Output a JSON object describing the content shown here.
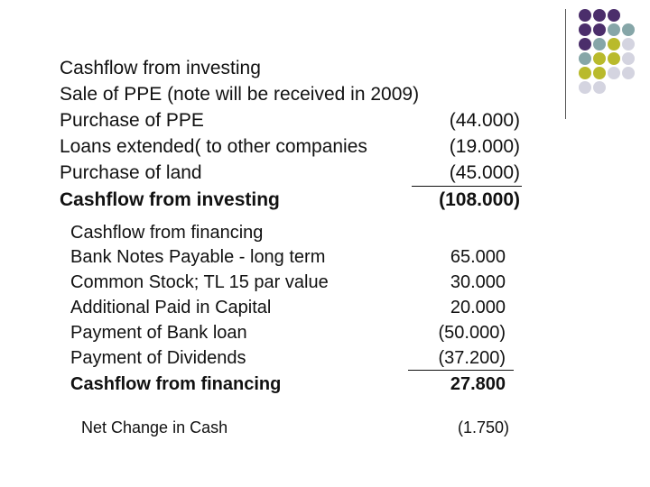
{
  "decoration": {
    "dot_colors": {
      "purple": "#4b2e6b",
      "teal": "#86a6a8",
      "olive": "#b9ba2c",
      "lavender": "#d4d4e0"
    },
    "dot_grid": [
      [
        "purple",
        "purple",
        "purple",
        ""
      ],
      [
        "purple",
        "purple",
        "teal",
        "teal"
      ],
      [
        "purple",
        "teal",
        "olive",
        "lavender"
      ],
      [
        "teal",
        "olive",
        "olive",
        "lavender"
      ],
      [
        "olive",
        "olive",
        "lavender",
        "lavender"
      ],
      [
        "lavender",
        "lavender",
        "",
        ""
      ]
    ]
  },
  "investing": {
    "heading": "Cashflow from investing",
    "items": [
      {
        "label": "Sale of PPE (note will be received in 2009)",
        "amount": ""
      },
      {
        "label": "Purchase of PPE",
        "amount": "(44.000)"
      },
      {
        "label": "Loans extended( to other companies",
        "amount": "(19.000)"
      },
      {
        "label": "Purchase of land",
        "amount": "(45.000)"
      }
    ],
    "total": {
      "label": "Cashflow from investing",
      "amount": "(108.000)"
    }
  },
  "financing": {
    "heading": "Cashflow from financing",
    "items": [
      {
        "label": "Bank Notes Payable - long term",
        "amount": "65.000"
      },
      {
        "label": "Common Stock; TL 15 par value",
        "amount": "30.000"
      },
      {
        "label": "Additional Paid in Capital",
        "amount": "20.000"
      },
      {
        "label": "Payment of Bank loan",
        "amount": "(50.000)"
      },
      {
        "label": "Payment of Dividends",
        "amount": "(37.200)"
      }
    ],
    "total": {
      "label": "Cashflow from financing",
      "amount": "27.800"
    }
  },
  "net_change": {
    "label": "Net Change in Cash",
    "amount": "(1.750)"
  }
}
